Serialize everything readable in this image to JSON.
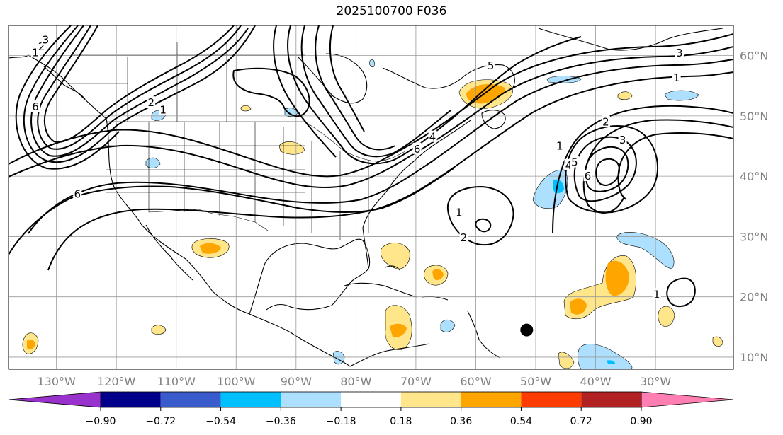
{
  "title": "2025100700 F036",
  "map": {
    "projection": "PlateCarree",
    "extent": {
      "lon": [
        -138,
        -17
      ],
      "lat": [
        8,
        65
      ]
    },
    "lon_ticks": [
      {
        "value": -130,
        "label": "130°W"
      },
      {
        "value": -120,
        "label": "120°W"
      },
      {
        "value": -110,
        "label": "110°W"
      },
      {
        "value": -100,
        "label": "100°W"
      },
      {
        "value": -90,
        "label": "90°W"
      },
      {
        "value": -80,
        "label": "80°W"
      },
      {
        "value": -70,
        "label": "70°W"
      },
      {
        "value": -60,
        "label": "60°W"
      },
      {
        "value": -50,
        "label": "50°W"
      },
      {
        "value": -40,
        "label": "40°W"
      },
      {
        "value": -30,
        "label": "30°W"
      }
    ],
    "lat_ticks": [
      {
        "value": 60,
        "label": "60°N"
      },
      {
        "value": 50,
        "label": "50°N"
      },
      {
        "value": 40,
        "label": "40°N"
      },
      {
        "value": 30,
        "label": "30°N"
      },
      {
        "value": 20,
        "label": "20°N"
      },
      {
        "value": 10,
        "label": "10°N"
      }
    ],
    "gridlines": true,
    "marker": {
      "lon": -51.5,
      "lat": 14.5,
      "color": "#000000"
    }
  },
  "contour_labels": [
    {
      "text": "1",
      "lon": -133.5,
      "lat": 60.5
    },
    {
      "text": "2",
      "lon": -132.5,
      "lat": 61.5
    },
    {
      "text": "3",
      "lon": -131.8,
      "lat": 62.6
    },
    {
      "text": "6",
      "lon": -133.5,
      "lat": 51.5
    },
    {
      "text": "2",
      "lon": -114.2,
      "lat": 52.2
    },
    {
      "text": "1",
      "lon": -112.2,
      "lat": 51.0
    },
    {
      "text": "6",
      "lon": -126.5,
      "lat": 37.0
    },
    {
      "text": "6",
      "lon": -69.8,
      "lat": 44.5
    },
    {
      "text": "4",
      "lon": -67.2,
      "lat": 46.5
    },
    {
      "text": "5",
      "lon": -57.5,
      "lat": 58.3
    },
    {
      "text": "3",
      "lon": -26.0,
      "lat": 60.4
    },
    {
      "text": "1",
      "lon": -26.5,
      "lat": 56.3
    },
    {
      "text": "2",
      "lon": -38.3,
      "lat": 49.0
    },
    {
      "text": "3",
      "lon": -35.5,
      "lat": 46.0
    },
    {
      "text": "1",
      "lon": -46.0,
      "lat": 45.0
    },
    {
      "text": "4",
      "lon": -44.5,
      "lat": 41.8
    },
    {
      "text": "5",
      "lon": -43.5,
      "lat": 42.3
    },
    {
      "text": "6",
      "lon": -41.3,
      "lat": 40.0
    },
    {
      "text": "1",
      "lon": -62.8,
      "lat": 34.0
    },
    {
      "text": "2",
      "lon": -62.0,
      "lat": 29.8
    },
    {
      "text": "1",
      "lon": -29.8,
      "lat": 20.4
    }
  ],
  "colorbar": {
    "ticks": [
      "−0.90",
      "−0.72",
      "−0.54",
      "−0.36",
      "−0.18",
      "0.18",
      "0.36",
      "0.54",
      "0.72",
      "0.90"
    ],
    "under_color": "#9932cc",
    "over_color": "#ff7fb2",
    "colors": [
      "#00008b",
      "#3a5bcc",
      "#00bfff",
      "#ade0ff",
      "#ffffff",
      "#ffe68a",
      "#ffa500",
      "#ff3c00",
      "#b22222"
    ]
  },
  "legend_colors": {
    "neg_light": "#ade0ff",
    "neg_mid": "#00bfff",
    "pos_light": "#ffe68a",
    "pos_mid": "#ffa500"
  }
}
